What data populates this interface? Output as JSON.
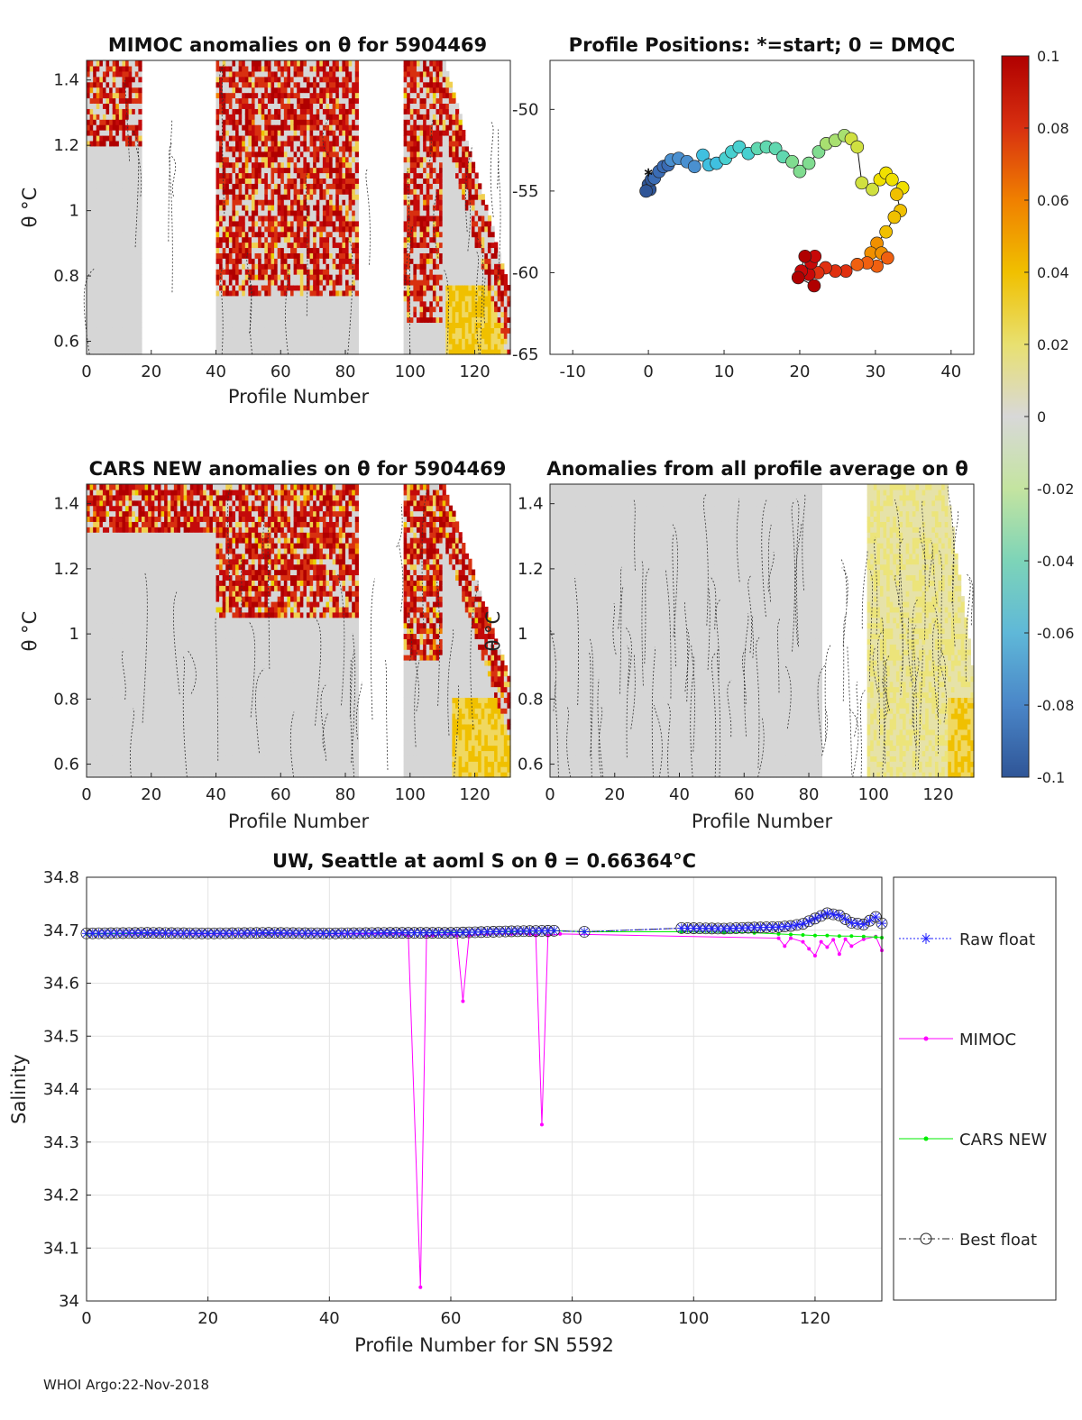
{
  "footer": {
    "stamp": "WHOI Argo:22-Nov-2018"
  },
  "chart_data": [
    {
      "id": "mimoc",
      "type": "heatmap",
      "title": "MIMOC anomalies on θ  for 5904469",
      "xlabel": "Profile Number",
      "ylabel": "θ °C",
      "xlim": [
        0,
        131
      ],
      "ylim": [
        0.56,
        1.46
      ],
      "xticks": [
        "0",
        "20",
        "40",
        "60",
        "80",
        "100",
        "120"
      ],
      "yticks": [
        "0.6",
        "0.8",
        "1",
        "1.2",
        "1.4"
      ],
      "right_ticks": [
        "-50",
        "-55",
        "-60",
        "-65"
      ],
      "data_gaps": [
        [
          17,
          39
        ],
        [
          84,
          97
        ]
      ],
      "description_of_values": "anomaly values range -0.1 to 0.1, mostly 0 with strong positive (red) anomalies in upper layers"
    },
    {
      "id": "positions",
      "type": "scatter",
      "title": "Profile Positions: *=start; 0 = DMQC",
      "xlim": [
        -13,
        43
      ],
      "ylim": [
        -65,
        -47
      ],
      "xticks": [
        "-10",
        "0",
        "10",
        "20",
        "30",
        "40"
      ],
      "yticks": [
        "-50",
        "-55",
        "-60",
        "-65"
      ],
      "start_marker": "*",
      "points": [
        [
          0,
          -54.6
        ],
        [
          0.2,
          -54.9
        ],
        [
          -0.3,
          -55.0
        ],
        [
          0.4,
          -54.3
        ],
        [
          0.8,
          -54.2
        ],
        [
          1.4,
          -53.8
        ],
        [
          2,
          -53.5
        ],
        [
          2.6,
          -53.4
        ],
        [
          3,
          -53.1
        ],
        [
          4,
          -53.0
        ],
        [
          5.1,
          -53.2
        ],
        [
          6.1,
          -53.5
        ],
        [
          7.2,
          -52.8
        ],
        [
          8,
          -53.4
        ],
        [
          9,
          -53.3
        ],
        [
          10.2,
          -53.0
        ],
        [
          11,
          -52.6
        ],
        [
          12,
          -52.3
        ],
        [
          13.2,
          -52.7
        ],
        [
          14.4,
          -52.4
        ],
        [
          15.6,
          -52.3
        ],
        [
          16.8,
          -52.4
        ],
        [
          17.8,
          -52.9
        ],
        [
          19,
          -53.2
        ],
        [
          20,
          -53.8
        ],
        [
          21.2,
          -53.3
        ],
        [
          22.5,
          -52.6
        ],
        [
          23.5,
          -52.1
        ],
        [
          24.7,
          -51.9
        ],
        [
          25.9,
          -51.6
        ],
        [
          26.8,
          -51.8
        ],
        [
          27.6,
          -52.3
        ],
        [
          28.2,
          -54.5
        ],
        [
          29.6,
          -54.9
        ],
        [
          30.6,
          -54.3
        ],
        [
          31.4,
          -53.9
        ],
        [
          32.2,
          -54.3
        ],
        [
          33.6,
          -54.8
        ],
        [
          32.8,
          -55.2
        ],
        [
          33.3,
          -56.2
        ],
        [
          32.5,
          -56.6
        ],
        [
          31.4,
          -57.5
        ],
        [
          30.2,
          -58.2
        ],
        [
          29.4,
          -58.8
        ],
        [
          30.8,
          -58.8
        ],
        [
          31.6,
          -59.1
        ],
        [
          30.2,
          -59.6
        ],
        [
          28.9,
          -59.4
        ],
        [
          27.6,
          -59.5
        ],
        [
          26.1,
          -59.9
        ],
        [
          24.7,
          -59.9
        ],
        [
          23.4,
          -59.7
        ],
        [
          22.4,
          -60.0
        ],
        [
          21.2,
          -60.1
        ],
        [
          20.2,
          -59.9
        ],
        [
          21.5,
          -59.4
        ],
        [
          22,
          -59.0
        ],
        [
          20.7,
          -59.0
        ],
        [
          19.8,
          -60.3
        ],
        [
          21.9,
          -60.8
        ]
      ]
    },
    {
      "id": "colorbar",
      "type": "heatmap",
      "clim": [
        -0.1,
        0.1
      ],
      "ticks": [
        "0.1",
        "0.08",
        "0.06",
        "0.04",
        "0.02",
        "0",
        "-0.02",
        "-0.04",
        "-0.06",
        "-0.08",
        "-0.1"
      ],
      "colors": [
        "#2f5597",
        "#4a86c8",
        "#5fb8d8",
        "#7dd4b8",
        "#c4e4a0",
        "#d8d8d8",
        "#e8e070",
        "#f0c000",
        "#f08000",
        "#d83010",
        "#b00000"
      ]
    },
    {
      "id": "cars",
      "type": "heatmap",
      "title": "CARS NEW anomalies on θ for 5904469",
      "xlabel": "Profile Number",
      "ylabel": "θ °C",
      "xlim": [
        0,
        131
      ],
      "ylim": [
        0.56,
        1.46
      ],
      "xticks": [
        "0",
        "20",
        "40",
        "60",
        "80",
        "100",
        "120"
      ],
      "yticks": [
        "0.6",
        "0.8",
        "1",
        "1.2",
        "1.4"
      ],
      "data_gaps": [
        [
          84,
          97
        ]
      ]
    },
    {
      "id": "allprofile",
      "type": "heatmap",
      "title": "Anomalies from all profile average on θ",
      "xlabel": "Profile Number",
      "ylabel": "θ °C",
      "xlim": [
        0,
        131
      ],
      "ylim": [
        0.56,
        1.46
      ],
      "xticks": [
        "0",
        "20",
        "40",
        "60",
        "80",
        "100",
        "120"
      ],
      "yticks": [
        "0.6",
        "0.8",
        "1",
        "1.2",
        "1.4"
      ],
      "data_gaps": [
        [
          84,
          97
        ]
      ]
    },
    {
      "id": "salinity",
      "type": "line",
      "title": "UW, Seattle at aoml S on θ = 0.66364°C",
      "xlabel": "Profile Number for SN 5592",
      "ylabel": "Salinity",
      "xlim": [
        0,
        131
      ],
      "ylim": [
        34,
        34.8
      ],
      "xticks": [
        "0",
        "20",
        "40",
        "60",
        "80",
        "100",
        "120"
      ],
      "yticks": [
        "34",
        "34.1",
        "34.2",
        "34.3",
        "34.4",
        "34.5",
        "34.6",
        "34.7",
        "34.8"
      ],
      "legend": [
        "Raw float",
        "MIMOC",
        "CARS NEW",
        "Best float"
      ],
      "series": [
        {
          "name": "MIMOC",
          "x": [
            0,
            10,
            20,
            30,
            40,
            50,
            52,
            53,
            55,
            56,
            57,
            60,
            61,
            62,
            63,
            66,
            70,
            73,
            74,
            75,
            76,
            78,
            114,
            115,
            116,
            118,
            119,
            120,
            121,
            122,
            123,
            124,
            125,
            126,
            128,
            130,
            131
          ],
          "values": [
            34.693,
            34.693,
            34.693,
            34.693,
            34.693,
            34.693,
            34.693,
            34.69,
            34.026,
            34.69,
            34.69,
            34.693,
            34.69,
            34.566,
            34.69,
            34.693,
            34.693,
            34.693,
            34.69,
            34.333,
            34.69,
            34.693,
            34.685,
            34.67,
            34.685,
            34.678,
            34.665,
            34.652,
            34.678,
            34.668,
            34.682,
            34.655,
            34.683,
            34.67,
            34.683,
            34.688,
            34.662
          ]
        },
        {
          "name": "CARS NEW",
          "x": [
            0,
            10,
            20,
            30,
            40,
            50,
            60,
            70,
            77,
            82,
            98,
            105,
            110,
            114,
            116,
            118,
            120,
            122,
            124,
            126,
            128,
            130,
            131
          ],
          "values": [
            34.693,
            34.694,
            34.694,
            34.694,
            34.694,
            34.695,
            34.696,
            34.697,
            34.699,
            34.697,
            34.697,
            34.696,
            34.695,
            34.693,
            34.692,
            34.691,
            34.69,
            34.69,
            34.689,
            34.689,
            34.688,
            34.687,
            34.686
          ]
        },
        {
          "name": "Raw float",
          "x": [
            0,
            10,
            20,
            30,
            40,
            50,
            60,
            70,
            77,
            82,
            98,
            105,
            110,
            114,
            116,
            118,
            120,
            122,
            124,
            126,
            128,
            130,
            131
          ],
          "values": [
            34.694,
            34.695,
            34.694,
            34.695,
            34.694,
            34.695,
            34.695,
            34.698,
            34.699,
            34.697,
            34.704,
            34.703,
            34.705,
            34.706,
            34.708,
            34.712,
            34.722,
            34.732,
            34.728,
            34.714,
            34.711,
            34.725,
            34.713
          ]
        },
        {
          "name": "Best float",
          "x": [
            0,
            10,
            20,
            30,
            40,
            50,
            60,
            70,
            77,
            82,
            98,
            105,
            110,
            114,
            116,
            118,
            120,
            122,
            124,
            126,
            128,
            130,
            131
          ],
          "values": [
            34.694,
            34.695,
            34.694,
            34.695,
            34.694,
            34.695,
            34.695,
            34.698,
            34.699,
            34.697,
            34.704,
            34.703,
            34.705,
            34.706,
            34.708,
            34.712,
            34.722,
            34.732,
            34.728,
            34.714,
            34.711,
            34.725,
            34.713
          ]
        }
      ]
    }
  ]
}
